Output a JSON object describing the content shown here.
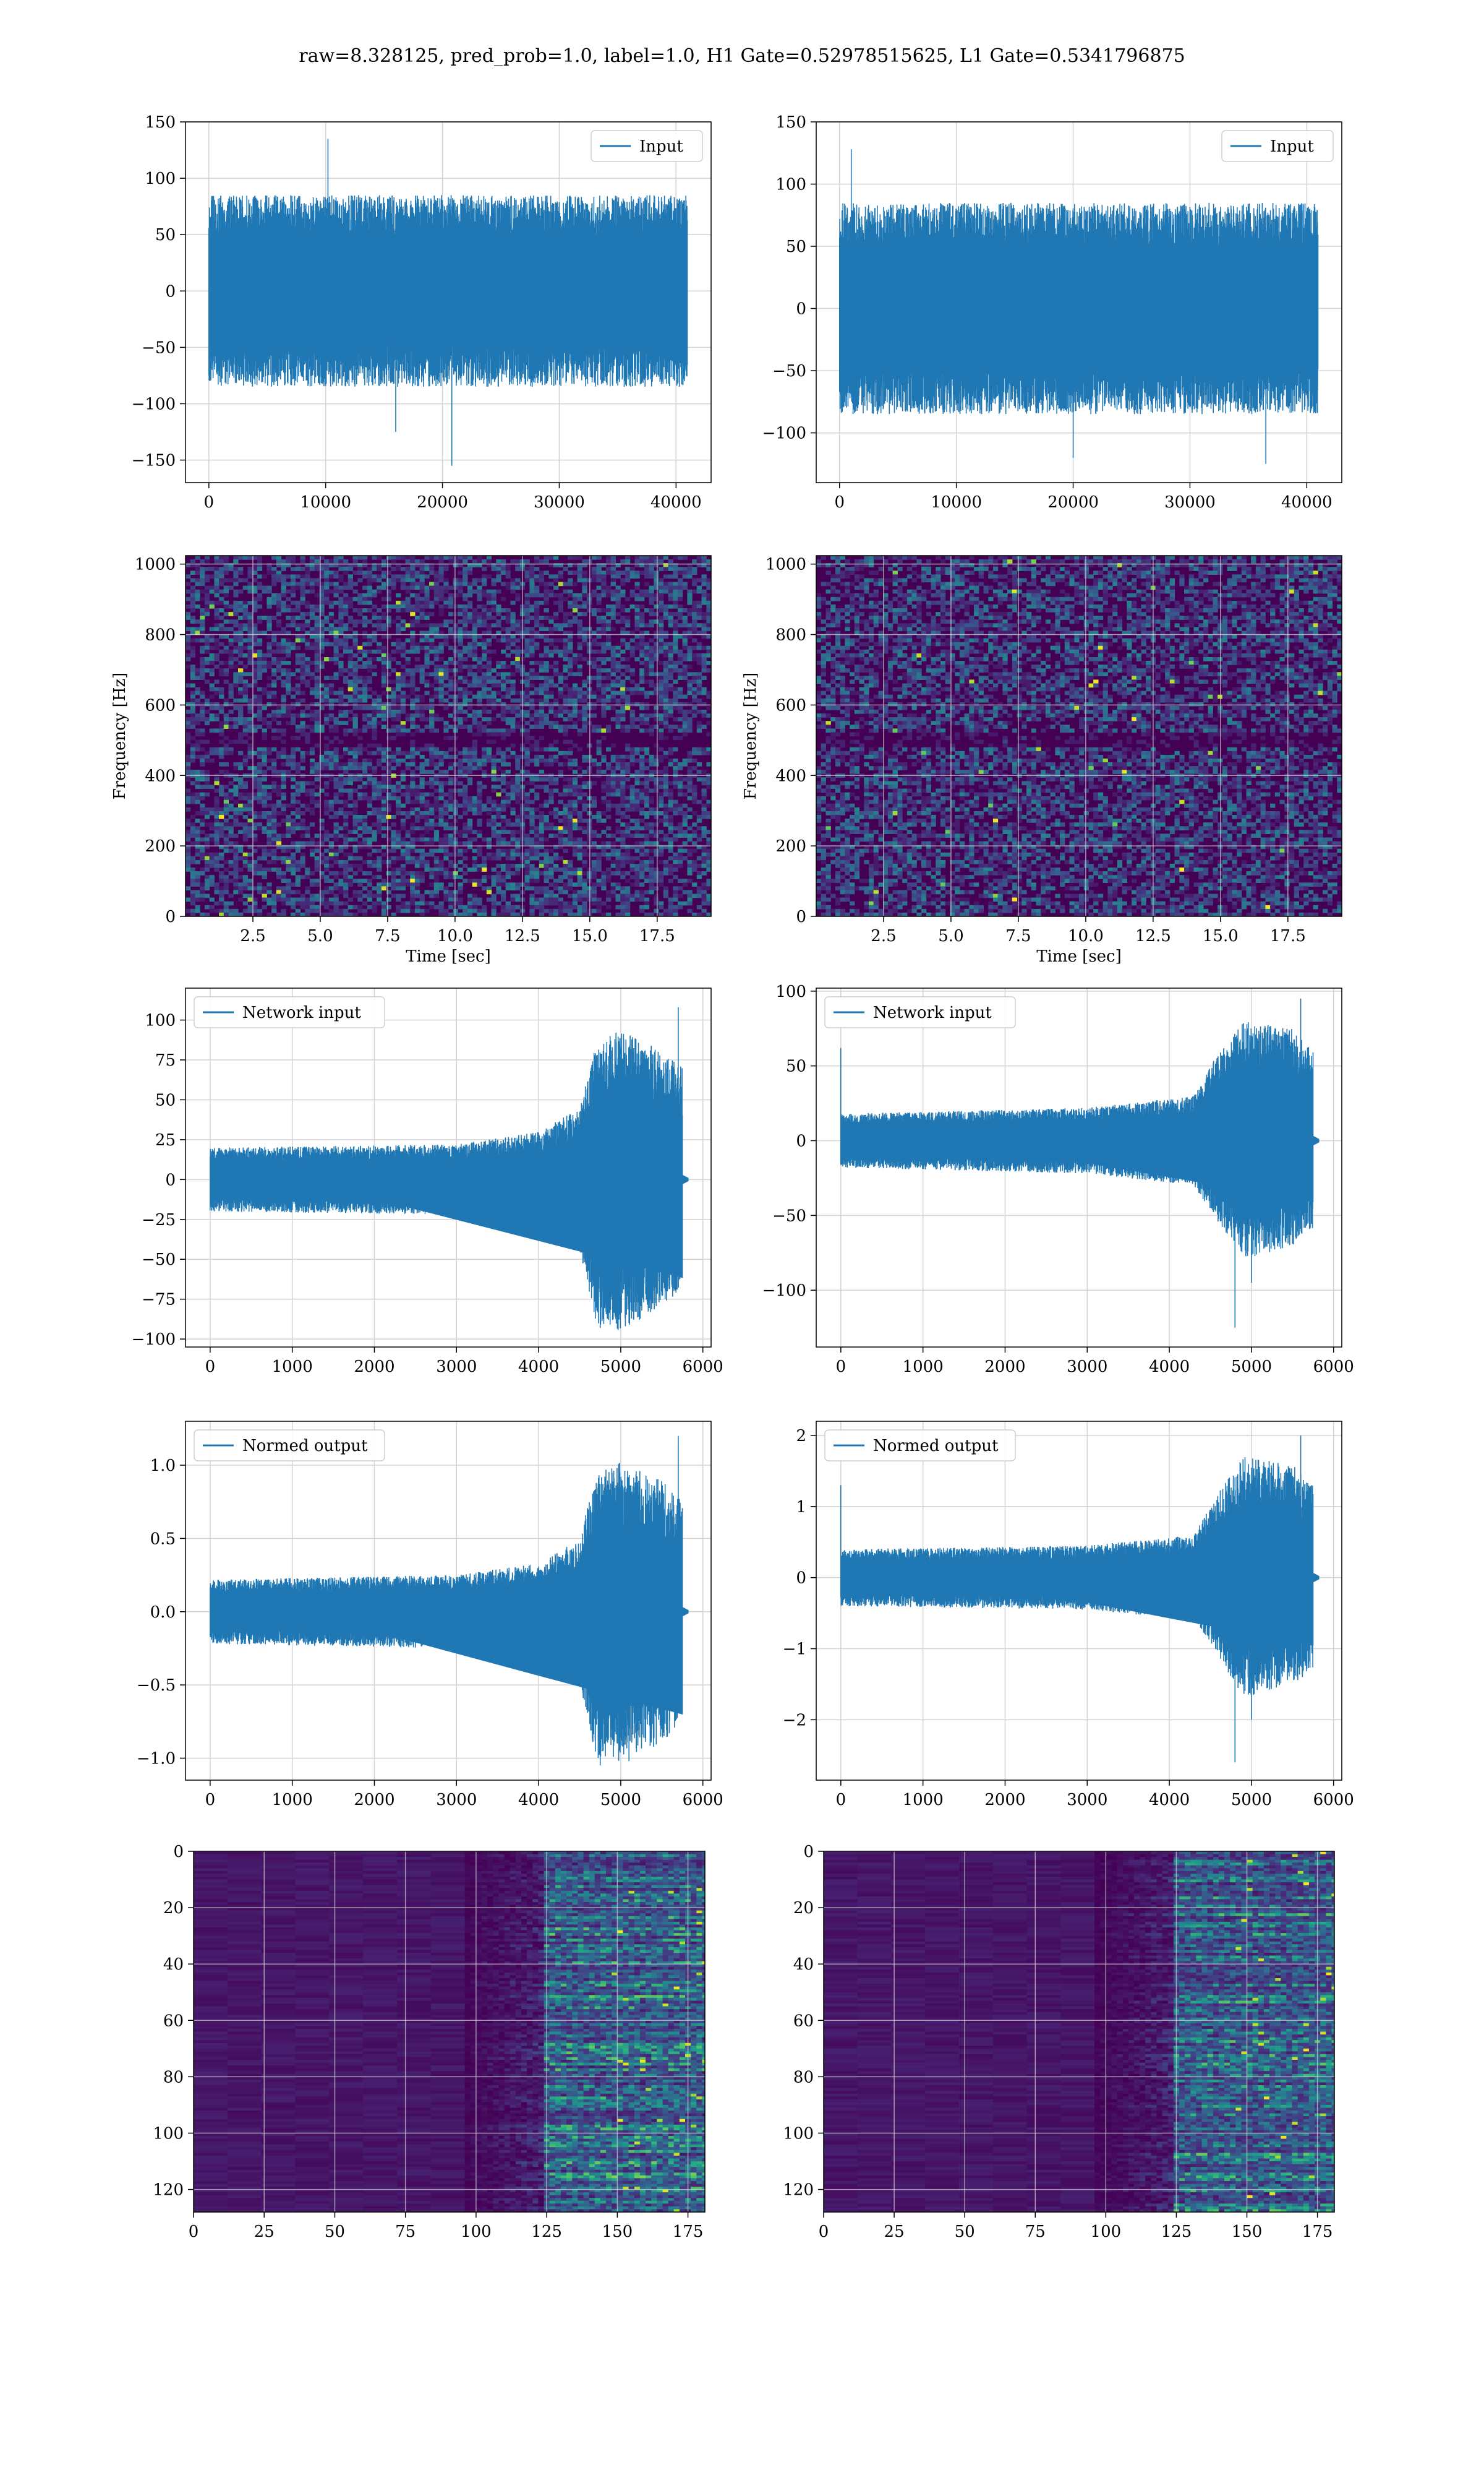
{
  "title": "raw=8.328125, pred_prob=1.0, label=1.0, H1 Gate=0.52978515625, L1 Gate=0.5341796875",
  "colors": {
    "line": "#1f77b4",
    "grid": "#d3d3d3",
    "viridis_dark": "#440154",
    "viridis_mid": "#21918c",
    "viridis_bright": "#fde725"
  },
  "chart_data": [
    {
      "id": "h1-input",
      "type": "line",
      "row": 0,
      "col": 0,
      "legend": "Input",
      "legend_loc": "top-right",
      "xlim": [
        -2000,
        43000
      ],
      "ylim": [
        -170,
        150
      ],
      "xticks": [
        0,
        10000,
        20000,
        30000,
        40000
      ],
      "xtick_labels": [
        "0",
        "10000",
        "20000",
        "30000",
        "40000"
      ],
      "yticks": [
        -150,
        -100,
        -50,
        0,
        50,
        100,
        150
      ],
      "ytick_labels": [
        "−150",
        "−100",
        "−50",
        "0",
        "50",
        "100",
        "150"
      ],
      "xlabel": "",
      "ylabel": "",
      "grid": true,
      "series": [
        {
          "x_range": [
            0,
            40960
          ],
          "envelope": [
            [
              0,
              -85,
              85
            ],
            [
              40960,
              -85,
              85
            ]
          ],
          "peaks": [
            [
              10200,
              135
            ],
            [
              20800,
              -155
            ],
            [
              16000,
              -125
            ]
          ]
        }
      ]
    },
    {
      "id": "l1-input",
      "type": "line",
      "row": 0,
      "col": 1,
      "legend": "Input",
      "legend_loc": "top-right",
      "xlim": [
        -2000,
        43000
      ],
      "ylim": [
        -140,
        150
      ],
      "xticks": [
        0,
        10000,
        20000,
        30000,
        40000
      ],
      "xtick_labels": [
        "0",
        "10000",
        "20000",
        "30000",
        "40000"
      ],
      "yticks": [
        -100,
        -50,
        0,
        50,
        100,
        150
      ],
      "ytick_labels": [
        "−100",
        "−50",
        "0",
        "50",
        "100",
        "150"
      ],
      "xlabel": "",
      "ylabel": "",
      "grid": true,
      "series": [
        {
          "x_range": [
            0,
            40960
          ],
          "envelope": [
            [
              0,
              -85,
              85
            ],
            [
              40960,
              -85,
              85
            ]
          ],
          "peaks": [
            [
              1000,
              128
            ],
            [
              20000,
              -120
            ],
            [
              36500,
              -125
            ]
          ]
        }
      ]
    },
    {
      "id": "h1-spectrogram",
      "type": "heatmap",
      "row": 1,
      "col": 0,
      "xlim": [
        0,
        19.5
      ],
      "ylim": [
        0,
        1024
      ],
      "xticks": [
        2.5,
        5.0,
        7.5,
        10.0,
        12.5,
        15.0,
        17.5
      ],
      "xtick_labels": [
        "2.5",
        "5.0",
        "7.5",
        "10.0",
        "12.5",
        "15.0",
        "17.5"
      ],
      "yticks": [
        0,
        200,
        400,
        600,
        800,
        1000
      ],
      "ytick_labels": [
        "0",
        "200",
        "400",
        "600",
        "800",
        "1000"
      ],
      "xlabel": "Time [sec]",
      "ylabel": "Frequency [Hz]",
      "grid": true,
      "dark_band": [
        480,
        520
      ],
      "seed": 11
    },
    {
      "id": "l1-spectrogram",
      "type": "heatmap",
      "row": 1,
      "col": 1,
      "xlim": [
        0,
        19.5
      ],
      "ylim": [
        0,
        1024
      ],
      "xticks": [
        2.5,
        5.0,
        7.5,
        10.0,
        12.5,
        15.0,
        17.5
      ],
      "xtick_labels": [
        "2.5",
        "5.0",
        "7.5",
        "10.0",
        "12.5",
        "15.0",
        "17.5"
      ],
      "yticks": [
        0,
        200,
        400,
        600,
        800,
        1000
      ],
      "ytick_labels": [
        "0",
        "200",
        "400",
        "600",
        "800",
        "1000"
      ],
      "xlabel": "Time [sec]",
      "ylabel": "Frequency [Hz]",
      "grid": true,
      "dark_band": [
        480,
        520
      ],
      "seed": 23
    },
    {
      "id": "h1-network-input",
      "type": "line",
      "row": 2,
      "col": 0,
      "legend": "Network input",
      "legend_loc": "top-left",
      "xlim": [
        -300,
        6100
      ],
      "ylim": [
        -105,
        120
      ],
      "xticks": [
        0,
        1000,
        2000,
        3000,
        4000,
        5000,
        6000
      ],
      "xtick_labels": [
        "0",
        "1000",
        "2000",
        "3000",
        "4000",
        "5000",
        "6000"
      ],
      "yticks": [
        -100,
        -75,
        -50,
        -25,
        0,
        25,
        50,
        75,
        100
      ],
      "ytick_labels": [
        "−100",
        "−75",
        "−50",
        "−25",
        "0",
        "25",
        "50",
        "75",
        "100"
      ],
      "xlabel": "",
      "ylabel": "",
      "grid": true,
      "series": [
        {
          "x_range": [
            0,
            5750
          ],
          "tail_end": 5820,
          "envelope": [
            [
              0,
              -20,
              20
            ],
            [
              3000,
              -22,
              22
            ],
            [
              4000,
              -30,
              30
            ],
            [
              4500,
              -45,
              45
            ],
            [
              4700,
              -90,
              85
            ],
            [
              5000,
              -95,
              95
            ],
            [
              5500,
              -80,
              80
            ],
            [
              5750,
              -70,
              70
            ]
          ],
          "peaks": [
            [
              5700,
              108
            ],
            [
              4750,
              -93
            ],
            [
              5100,
              -90
            ],
            [
              4850,
              -88
            ]
          ]
        }
      ]
    },
    {
      "id": "l1-network-input",
      "type": "line",
      "row": 2,
      "col": 1,
      "legend": "Network input",
      "legend_loc": "top-left",
      "xlim": [
        -300,
        6100
      ],
      "ylim": [
        -138,
        102
      ],
      "xticks": [
        0,
        1000,
        2000,
        3000,
        4000,
        5000,
        6000
      ],
      "xtick_labels": [
        "0",
        "1000",
        "2000",
        "3000",
        "4000",
        "5000",
        "6000"
      ],
      "yticks": [
        -100,
        -50,
        0,
        50,
        100
      ],
      "ytick_labels": [
        "−100",
        "−50",
        "0",
        "50",
        "100"
      ],
      "xlabel": "",
      "ylabel": "",
      "grid": true,
      "series": [
        {
          "x_range": [
            0,
            5750
          ],
          "tail_end": 5820,
          "envelope": [
            [
              0,
              -18,
              18
            ],
            [
              3000,
              -22,
              22
            ],
            [
              4300,
              -30,
              30
            ],
            [
              4600,
              -55,
              60
            ],
            [
              4900,
              -80,
              80
            ],
            [
              5500,
              -70,
              75
            ],
            [
              5750,
              -60,
              60
            ]
          ],
          "peaks": [
            [
              0,
              62
            ],
            [
              4800,
              -125
            ],
            [
              5600,
              95
            ],
            [
              5000,
              -95
            ]
          ]
        }
      ]
    },
    {
      "id": "h1-normed-output",
      "type": "line",
      "row": 3,
      "col": 0,
      "legend": "Normed output",
      "legend_loc": "top-left",
      "xlim": [
        -300,
        6100
      ],
      "ylim": [
        -1.15,
        1.3
      ],
      "xticks": [
        0,
        1000,
        2000,
        3000,
        4000,
        5000,
        6000
      ],
      "xtick_labels": [
        "0",
        "1000",
        "2000",
        "3000",
        "4000",
        "5000",
        "6000"
      ],
      "yticks": [
        -1.0,
        -0.5,
        0.0,
        0.5,
        1.0
      ],
      "ytick_labels": [
        "−1.0",
        "−0.5",
        "0.0",
        "0.5",
        "1.0"
      ],
      "xlabel": "",
      "ylabel": "",
      "grid": true,
      "series": [
        {
          "x_range": [
            0,
            5750
          ],
          "tail_end": 5820,
          "envelope": [
            [
              0,
              -0.22,
              0.22
            ],
            [
              3000,
              -0.25,
              0.25
            ],
            [
              4000,
              -0.33,
              0.33
            ],
            [
              4500,
              -0.5,
              0.5
            ],
            [
              4700,
              -1.0,
              0.95
            ],
            [
              5000,
              -1.02,
              1.02
            ],
            [
              5500,
              -0.9,
              0.9
            ],
            [
              5750,
              -0.75,
              0.75
            ]
          ],
          "peaks": [
            [
              5700,
              1.2
            ],
            [
              4750,
              -1.05
            ],
            [
              5100,
              -1.02
            ]
          ]
        }
      ]
    },
    {
      "id": "l1-normed-output",
      "type": "line",
      "row": 3,
      "col": 1,
      "legend": "Normed output",
      "legend_loc": "top-left",
      "xlim": [
        -300,
        6100
      ],
      "ylim": [
        -2.85,
        2.2
      ],
      "xticks": [
        0,
        1000,
        2000,
        3000,
        4000,
        5000,
        6000
      ],
      "xtick_labels": [
        "0",
        "1000",
        "2000",
        "3000",
        "4000",
        "5000",
        "6000"
      ],
      "yticks": [
        -2,
        -1,
        0,
        1,
        2
      ],
      "ytick_labels": [
        "−2",
        "−1",
        "0",
        "1",
        "2"
      ],
      "xlabel": "",
      "ylabel": "",
      "grid": true,
      "series": [
        {
          "x_range": [
            0,
            5750
          ],
          "tail_end": 5820,
          "envelope": [
            [
              0,
              -0.4,
              0.4
            ],
            [
              3000,
              -0.45,
              0.45
            ],
            [
              4300,
              -0.6,
              0.6
            ],
            [
              4600,
              -1.1,
              1.2
            ],
            [
              4900,
              -1.7,
              1.7
            ],
            [
              5500,
              -1.5,
              1.6
            ],
            [
              5750,
              -1.3,
              1.3
            ]
          ],
          "peaks": [
            [
              0,
              1.3
            ],
            [
              4800,
              -2.6
            ],
            [
              5600,
              2.0
            ],
            [
              5000,
              -2.0
            ]
          ]
        }
      ]
    },
    {
      "id": "h1-feature-map",
      "type": "heatmap",
      "row": 4,
      "col": 0,
      "xlim": [
        0,
        181
      ],
      "ylim": [
        128,
        0
      ],
      "xticks": [
        0,
        25,
        50,
        75,
        100,
        125,
        150,
        175
      ],
      "xtick_labels": [
        "0",
        "25",
        "50",
        "75",
        "100",
        "125",
        "150",
        "175"
      ],
      "yticks": [
        0,
        20,
        40,
        60,
        80,
        100,
        120
      ],
      "ytick_labels": [
        "0",
        "20",
        "40",
        "60",
        "80",
        "100",
        "120"
      ],
      "xlabel": "",
      "ylabel": "",
      "grid": true,
      "seed": 37
    },
    {
      "id": "l1-feature-map",
      "type": "heatmap",
      "row": 4,
      "col": 1,
      "xlim": [
        0,
        181
      ],
      "ylim": [
        128,
        0
      ],
      "xticks": [
        0,
        25,
        50,
        75,
        100,
        125,
        150,
        175
      ],
      "xtick_labels": [
        "0",
        "25",
        "50",
        "75",
        "100",
        "125",
        "150",
        "175"
      ],
      "yticks": [
        0,
        20,
        40,
        60,
        80,
        100,
        120
      ],
      "ytick_labels": [
        "0",
        "20",
        "40",
        "60",
        "80",
        "100",
        "120"
      ],
      "xlabel": "",
      "ylabel": "",
      "grid": true,
      "seed": 53
    }
  ]
}
